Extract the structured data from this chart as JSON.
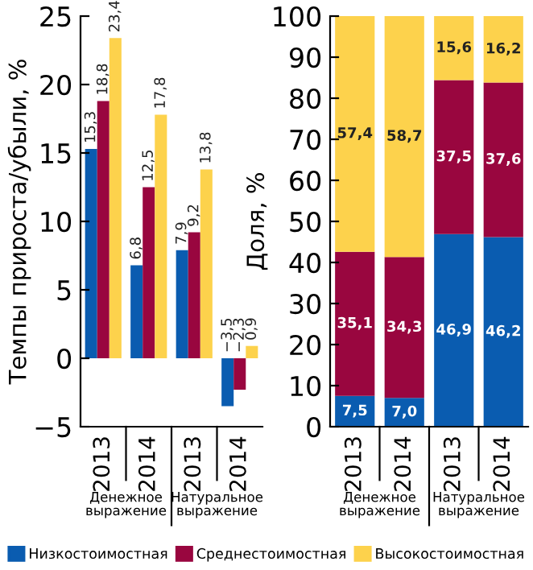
{
  "chart_data": [
    {
      "type": "bar",
      "ylabel": "Темпы прироста/убыли, %",
      "categories": [
        "2013",
        "2014",
        "2013",
        "2014"
      ],
      "ylim": [
        -5,
        25
      ],
      "yticks": [
        {
          "value": -5,
          "label": "−5"
        },
        0,
        5,
        10,
        15,
        20,
        25
      ],
      "grid": false,
      "legend": "bottom",
      "series": [
        {
          "name": "Низкостоимостная",
          "color": "#0a5cb0",
          "values": [
            15.3,
            6.8,
            7.9,
            -3.5
          ],
          "value_labels": [
            "15,3",
            "6,8",
            "7,9",
            "−3,5"
          ]
        },
        {
          "name": "Среднестоимостная",
          "color": "#99063f",
          "values": [
            18.8,
            12.5,
            9.2,
            -2.3
          ],
          "value_labels": [
            "18,8",
            "12,5",
            "9,2",
            "−2,3"
          ]
        },
        {
          "name": "Высокостоимостная",
          "color": "#fdd24c",
          "values": [
            23.4,
            17.8,
            13.8,
            0.9
          ],
          "value_labels": [
            "23,4",
            "17,8",
            "13,8",
            "0,9"
          ]
        }
      ],
      "annotations": [
        "Денежное выражение",
        "Натуральное выражение"
      ]
    },
    {
      "type": "bar",
      "stacked": true,
      "ylabel": "Доля, %",
      "categories": [
        "2013",
        "2014",
        "2013",
        "2014"
      ],
      "ylim": [
        0,
        100
      ],
      "yticks": [
        0,
        10,
        20,
        30,
        40,
        50,
        60,
        70,
        80,
        90,
        100
      ],
      "grid": false,
      "series": [
        {
          "color": "#0a5cb0",
          "values": [
            7.5,
            7.0,
            46.9,
            46.2
          ],
          "value_labels": [
            "7,5",
            "7,0",
            "46,9",
            "46,2"
          ]
        },
        {
          "color": "#99063f",
          "values": [
            35.1,
            34.3,
            37.5,
            37.6
          ],
          "value_labels": [
            "35,1",
            "34,3",
            "37,5",
            "37,6"
          ]
        },
        {
          "color": "#fdd24c",
          "values": [
            57.4,
            58.7,
            15.6,
            16.2
          ],
          "value_labels": [
            "57,4",
            "58,7",
            "15,6",
            "16,2"
          ]
        }
      ],
      "annotations": [
        "Денежное выражение",
        "Натуральное выражение"
      ]
    }
  ]
}
